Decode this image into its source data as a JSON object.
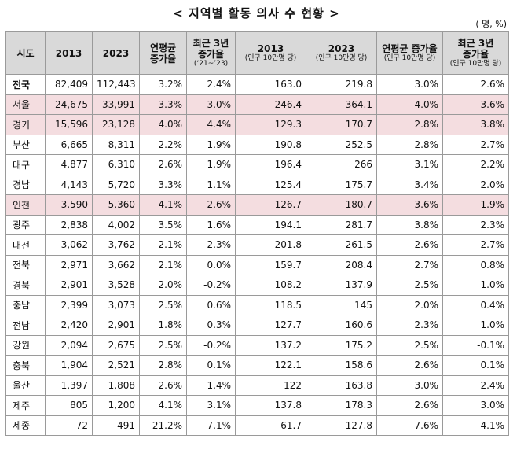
{
  "title": "< 지역별 활동 의사 수 현황 >",
  "unit": "( 명, %)",
  "headers": [
    {
      "main": "시도",
      "sub": ""
    },
    {
      "main": "2013",
      "sub": ""
    },
    {
      "main": "2023",
      "sub": ""
    },
    {
      "main": "연평균\n증가율",
      "sub": ""
    },
    {
      "main": "최근 3년\n증가율",
      "sub": "(‘21~’23)"
    },
    {
      "main": "2013",
      "sub": "(인구 10만명 당)"
    },
    {
      "main": "2023",
      "sub": "(인구 10만명 당)"
    },
    {
      "main": "연평균 증가율",
      "sub": "(인구 10만명 당)"
    },
    {
      "main": "최근 3년\n증가율",
      "sub": "(인구 10만명 당)"
    }
  ],
  "rows": [
    {
      "cells": [
        "전국",
        "82,409",
        "112,443",
        "3.2%",
        "2.4%",
        "163.0",
        "219.8",
        "3.0%",
        "2.6%"
      ],
      "highlight": false,
      "total": true
    },
    {
      "cells": [
        "서울",
        "24,675",
        "33,991",
        "3.3%",
        "3.0%",
        "246.4",
        "364.1",
        "4.0%",
        "3.6%"
      ],
      "highlight": true,
      "total": false
    },
    {
      "cells": [
        "경기",
        "15,596",
        "23,128",
        "4.0%",
        "4.4%",
        "129.3",
        "170.7",
        "2.8%",
        "3.8%"
      ],
      "highlight": true,
      "total": false
    },
    {
      "cells": [
        "부산",
        "6,665",
        "8,311",
        "2.2%",
        "1.9%",
        "190.8",
        "252.5",
        "2.8%",
        "2.7%"
      ],
      "highlight": false,
      "total": false
    },
    {
      "cells": [
        "대구",
        "4,877",
        "6,310",
        "2.6%",
        "1.9%",
        "196.4",
        "266",
        "3.1%",
        "2.2%"
      ],
      "highlight": false,
      "total": false
    },
    {
      "cells": [
        "경남",
        "4,143",
        "5,720",
        "3.3%",
        "1.1%",
        "125.4",
        "175.7",
        "3.4%",
        "2.0%"
      ],
      "highlight": false,
      "total": false
    },
    {
      "cells": [
        "인천",
        "3,590",
        "5,360",
        "4.1%",
        "2.6%",
        "126.7",
        "180.7",
        "3.6%",
        "1.9%"
      ],
      "highlight": true,
      "total": false
    },
    {
      "cells": [
        "광주",
        "2,838",
        "4,002",
        "3.5%",
        "1.6%",
        "194.1",
        "281.7",
        "3.8%",
        "2.3%"
      ],
      "highlight": false,
      "total": false
    },
    {
      "cells": [
        "대전",
        "3,062",
        "3,762",
        "2.1%",
        "2.3%",
        "201.8",
        "261.5",
        "2.6%",
        "2.7%"
      ],
      "highlight": false,
      "total": false
    },
    {
      "cells": [
        "전북",
        "2,971",
        "3,662",
        "2.1%",
        "0.0%",
        "159.7",
        "208.4",
        "2.7%",
        "0.8%"
      ],
      "highlight": false,
      "total": false
    },
    {
      "cells": [
        "경북",
        "2,901",
        "3,528",
        "2.0%",
        "-0.2%",
        "108.2",
        "137.9",
        "2.5%",
        "1.0%"
      ],
      "highlight": false,
      "total": false
    },
    {
      "cells": [
        "충남",
        "2,399",
        "3,073",
        "2.5%",
        "0.6%",
        "118.5",
        "145",
        "2.0%",
        "0.4%"
      ],
      "highlight": false,
      "total": false
    },
    {
      "cells": [
        "전남",
        "2,420",
        "2,901",
        "1.8%",
        "0.3%",
        "127.7",
        "160.6",
        "2.3%",
        "1.0%"
      ],
      "highlight": false,
      "total": false
    },
    {
      "cells": [
        "강원",
        "2,094",
        "2,675",
        "2.5%",
        "-0.2%",
        "137.2",
        "175.2",
        "2.5%",
        "-0.1%"
      ],
      "highlight": false,
      "total": false
    },
    {
      "cells": [
        "충북",
        "1,904",
        "2,521",
        "2.8%",
        "0.1%",
        "122.1",
        "158.6",
        "2.6%",
        "0.1%"
      ],
      "highlight": false,
      "total": false
    },
    {
      "cells": [
        "울산",
        "1,397",
        "1,808",
        "2.6%",
        "1.4%",
        "122",
        "163.8",
        "3.0%",
        "2.4%"
      ],
      "highlight": false,
      "total": false
    },
    {
      "cells": [
        "제주",
        "805",
        "1,200",
        "4.1%",
        "3.1%",
        "137.8",
        "178.3",
        "2.6%",
        "3.0%"
      ],
      "highlight": false,
      "total": false
    },
    {
      "cells": [
        "세종",
        "72",
        "491",
        "21.2%",
        "7.1%",
        "61.7",
        "127.8",
        "7.6%",
        "4.1%"
      ],
      "highlight": false,
      "total": false
    }
  ]
}
